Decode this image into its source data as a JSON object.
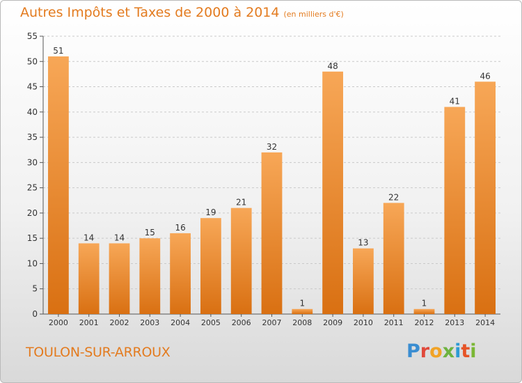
{
  "title": "Autres Impôts et Taxes de 2000 à 2014",
  "subtitle": "(en milliers d'€)",
  "location": "TOULON-SUR-ARROUX",
  "logo_text": "Proxiti",
  "colors": {
    "accent": "#e37b1f",
    "bar_top": "#f7a757",
    "bar_bottom": "#d97012"
  },
  "chart_data": {
    "type": "bar",
    "title": "Autres Impôts et Taxes de 2000 à 2014",
    "subtitle": "(en milliers d'€)",
    "categories": [
      "2000",
      "2001",
      "2002",
      "2003",
      "2004",
      "2005",
      "2006",
      "2007",
      "2008",
      "2009",
      "2010",
      "2011",
      "2012",
      "2013",
      "2014"
    ],
    "values": [
      51,
      14,
      14,
      15,
      16,
      19,
      21,
      32,
      1,
      48,
      13,
      22,
      1,
      41,
      46
    ],
    "ylim": [
      0,
      55
    ],
    "yticks": [
      0,
      5,
      10,
      15,
      20,
      25,
      30,
      35,
      40,
      45,
      50,
      55
    ],
    "grid": true,
    "data_labels": true
  }
}
